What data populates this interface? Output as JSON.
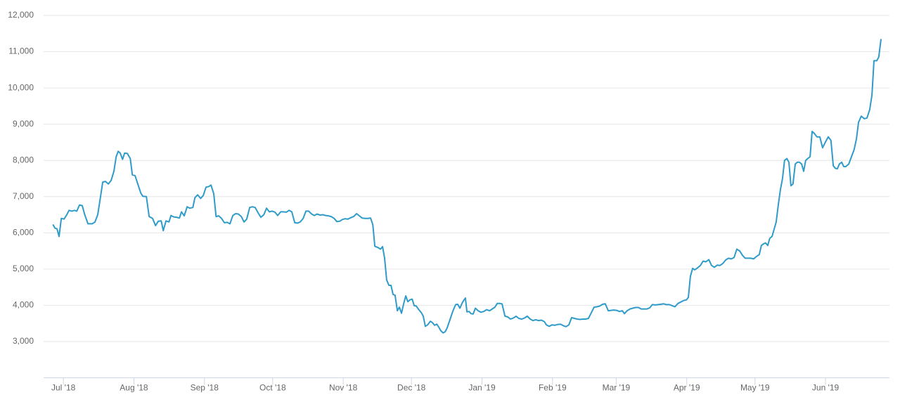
{
  "chart_data": {
    "type": "line",
    "x": [
      -4.6,
      -3.7,
      -2.8,
      -1.9,
      -0.9,
      0.3,
      1.5,
      2.5,
      3.7,
      4.9,
      5.9,
      7.1,
      8.3,
      9.3,
      10.8,
      12.7,
      13.9,
      15.1,
      16.1,
      17.3,
      18.5,
      19.8,
      21.0,
      22.2,
      23.2,
      24.1,
      25.0,
      26.0,
      26.9,
      28.1,
      29.4,
      30.3,
      31.5,
      32.8,
      34.0,
      34.9,
      36.5,
      37.7,
      39.2,
      40.5,
      41.7,
      43.0,
      43.9,
      45.1,
      46.4,
      47.3,
      48.5,
      49.7,
      51.0,
      51.9,
      53.1,
      54.4,
      55.6,
      56.9,
      57.8,
      59.0,
      60.3,
      61.5,
      62.7,
      64.0,
      64.9,
      66.1,
      67.1,
      68.3,
      69.5,
      70.8,
      72.0,
      73.2,
      74.5,
      75.7,
      76.9,
      78.2,
      79.4,
      80.6,
      81.9,
      83.1,
      84.3,
      85.6,
      86.8,
      88.1,
      89.3,
      90.5,
      91.8,
      93.0,
      94.2,
      95.5,
      96.7,
      98.0,
      99.2,
      100.4,
      101.7,
      102.9,
      104.1,
      105.4,
      106.6,
      107.8,
      109.1,
      110.3,
      111.5,
      112.8,
      114.0,
      115.3,
      116.5,
      117.7,
      119.0,
      120.2,
      121.4,
      122.7,
      123.9,
      125.1,
      126.4,
      127.6,
      128.9,
      130.1,
      131.3,
      132.6,
      133.8,
      135.0,
      136.0,
      136.9,
      138.1,
      139.4,
      140.3,
      141.2,
      142.1,
      143.1,
      144.0,
      144.9,
      145.8,
      146.8,
      147.7,
      148.6,
      149.6,
      150.5,
      151.4,
      152.3,
      153.3,
      154.2,
      155.1,
      156.0,
      157.3,
      158.2,
      159.1,
      160.1,
      161.3,
      162.2,
      163.2,
      164.1,
      165.0,
      165.9,
      166.9,
      167.8,
      168.7,
      169.9,
      171.2,
      172.4,
      173.3,
      174.3,
      175.2,
      176.1,
      176.7,
      177.4,
      178.3,
      179.2,
      180.1,
      181.1,
      182.3,
      183.5,
      184.8,
      186.0,
      187.3,
      188.5,
      189.7,
      190.7,
      191.9,
      192.8,
      194.1,
      195.3,
      196.5,
      197.8,
      199.0,
      200.2,
      201.5,
      202.7,
      203.9,
      205.2,
      206.4,
      207.6,
      208.9,
      210.1,
      211.4,
      212.3,
      213.5,
      214.8,
      216.0,
      217.2,
      218.5,
      219.7,
      220.9,
      222.2,
      223.4,
      224.6,
      225.9,
      227.1,
      228.4,
      229.6,
      230.8,
      232.1,
      233.3,
      234.5,
      235.8,
      237.0,
      238.2,
      239.5,
      240.7,
      241.9,
      243.2,
      244.4,
      245.7,
      246.6,
      247.8,
      249.1,
      250.3,
      251.5,
      252.8,
      254.0,
      255.2,
      256.5,
      257.7,
      258.9,
      260.2,
      261.4,
      262.7,
      263.9,
      265.1,
      266.4,
      267.6,
      268.8,
      270.1,
      271.3,
      272.5,
      273.8,
      274.7,
      275.6,
      276.6,
      277.5,
      278.7,
      280.0,
      281.2,
      282.4,
      283.7,
      284.9,
      286.1,
      287.4,
      288.6,
      289.8,
      291.1,
      292.3,
      293.6,
      294.8,
      296.0,
      297.3,
      298.5,
      299.7,
      301.0,
      302.2,
      303.4,
      304.7,
      305.9,
      306.8,
      307.8,
      308.7,
      309.6,
      310.5,
      311.5,
      312.4,
      313.3,
      314.3,
      315.2,
      316.1,
      317.0,
      318.0,
      318.9,
      319.8,
      320.7,
      321.7,
      322.6,
      323.5,
      324.5,
      325.4,
      326.3,
      327.2,
      328.2,
      329.1,
      330.0,
      331.2,
      332.5,
      333.7,
      334.9,
      336.2,
      337.4,
      338.4,
      339.3,
      340.2,
      341.1,
      342.1,
      343.0,
      343.9,
      345.2,
      346.4,
      347.6,
      348.6,
      349.5,
      350.7,
      352.0,
      353.2,
      354.4,
      355.4,
      356.3,
      357.5,
      358.4,
      359.4
    ],
    "series": [
      {
        "color": "#2f9bc9",
        "values": [
          6230,
          6130,
          6110,
          5900,
          6400,
          6380,
          6500,
          6620,
          6600,
          6620,
          6600,
          6770,
          6750,
          6520,
          6250,
          6250,
          6300,
          6500,
          6900,
          7400,
          7420,
          7350,
          7450,
          7700,
          8100,
          8250,
          8200,
          8030,
          8200,
          8190,
          8050,
          7600,
          7580,
          7330,
          7100,
          7010,
          7000,
          6450,
          6400,
          6200,
          6320,
          6330,
          6060,
          6330,
          6300,
          6480,
          6440,
          6430,
          6410,
          6580,
          6470,
          6720,
          6680,
          6700,
          6970,
          7050,
          6950,
          7030,
          7260,
          7280,
          7320,
          7080,
          6450,
          6470,
          6400,
          6280,
          6290,
          6250,
          6480,
          6530,
          6520,
          6450,
          6300,
          6380,
          6700,
          6720,
          6700,
          6550,
          6430,
          6500,
          6680,
          6580,
          6600,
          6570,
          6480,
          6580,
          6580,
          6570,
          6620,
          6580,
          6280,
          6270,
          6300,
          6400,
          6600,
          6600,
          6520,
          6480,
          6520,
          6490,
          6500,
          6480,
          6470,
          6450,
          6400,
          6310,
          6320,
          6370,
          6390,
          6380,
          6420,
          6450,
          6530,
          6470,
          6410,
          6400,
          6400,
          6410,
          6230,
          5630,
          5600,
          5550,
          5620,
          5300,
          4700,
          4550,
          4550,
          4300,
          4280,
          3850,
          3950,
          3780,
          4050,
          4260,
          4100,
          4150,
          4170,
          3990,
          3980,
          3900,
          3800,
          3700,
          3420,
          3460,
          3560,
          3520,
          3450,
          3480,
          3400,
          3300,
          3240,
          3270,
          3380,
          3600,
          3840,
          4020,
          4030,
          3920,
          4050,
          4150,
          4200,
          3820,
          3830,
          3770,
          3760,
          3920,
          3850,
          3810,
          3830,
          3880,
          3850,
          3900,
          3950,
          4050,
          4050,
          4040,
          3700,
          3680,
          3620,
          3650,
          3700,
          3640,
          3620,
          3650,
          3700,
          3620,
          3580,
          3600,
          3580,
          3590,
          3550,
          3460,
          3420,
          3460,
          3450,
          3470,
          3480,
          3440,
          3410,
          3460,
          3660,
          3640,
          3620,
          3610,
          3620,
          3620,
          3640,
          3800,
          3950,
          3960,
          3980,
          4030,
          4040,
          3850,
          3860,
          3870,
          3860,
          3830,
          3850,
          3770,
          3850,
          3900,
          3920,
          3940,
          3940,
          3900,
          3900,
          3900,
          3930,
          4020,
          4010,
          4020,
          4030,
          4040,
          4020,
          4020,
          3990,
          3960,
          4050,
          4090,
          4130,
          4150,
          4220,
          4800,
          5020,
          4980,
          5030,
          5100,
          5220,
          5200,
          5260,
          5100,
          5050,
          5110,
          5100,
          5150,
          5250,
          5300,
          5280,
          5320,
          5550,
          5500,
          5380,
          5300,
          5300,
          5300,
          5280,
          5350,
          5400,
          5650,
          5700,
          5720,
          5650,
          5850,
          5900,
          6100,
          6300,
          6800,
          7200,
          7500,
          8000,
          8050,
          7950,
          7300,
          7350,
          7900,
          7950,
          7950,
          7900,
          7700,
          8000,
          8050,
          8100,
          8800,
          8750,
          8650,
          8650,
          8350,
          8500,
          8650,
          8550,
          7850,
          7780,
          7770,
          7900,
          7950,
          7830,
          7830,
          7900,
          8100,
          8300,
          8600,
          9050,
          9220,
          9150,
          9170,
          9400,
          9800,
          10750,
          10750,
          10850,
          11350
        ]
      }
    ],
    "xlim": [
      -8.7,
      363.1
    ],
    "xticks": [
      {
        "value": 0,
        "label": "Jul '18"
      },
      {
        "value": 31,
        "label": "Aug '18"
      },
      {
        "value": 62,
        "label": "Sep '18"
      },
      {
        "value": 92,
        "label": "Oct '18"
      },
      {
        "value": 123,
        "label": "Nov '18"
      },
      {
        "value": 153,
        "label": "Dec '18"
      },
      {
        "value": 184,
        "label": "Jan '19"
      },
      {
        "value": 215,
        "label": "Feb '19"
      },
      {
        "value": 243,
        "label": "Mar '19"
      },
      {
        "value": 274,
        "label": "Apr '19"
      },
      {
        "value": 304,
        "label": "May '19"
      },
      {
        "value": 335,
        "label": "Jun '19"
      }
    ],
    "ylim": [
      2000,
      12000
    ],
    "yticks": [
      {
        "value": 3000,
        "label": "3,000"
      },
      {
        "value": 4000,
        "label": "4,000"
      },
      {
        "value": 5000,
        "label": "5,000"
      },
      {
        "value": 6000,
        "label": "6,000"
      },
      {
        "value": 7000,
        "label": "7,000"
      },
      {
        "value": 8000,
        "label": "8,000"
      },
      {
        "value": 9000,
        "label": "9,000"
      },
      {
        "value": 10000,
        "label": "10,000"
      },
      {
        "value": 11000,
        "label": "11,000"
      },
      {
        "value": 12000,
        "label": "12,000"
      }
    ],
    "grid": true
  }
}
